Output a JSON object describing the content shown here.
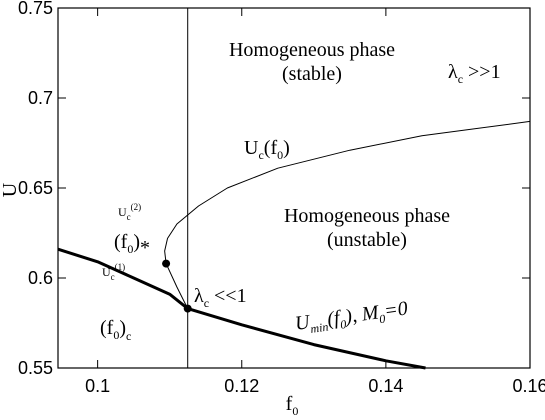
{
  "chart_data": {
    "type": "line",
    "xlabel": [
      "f",
      "0"
    ],
    "ylabel": "U",
    "xlim": [
      0.0945,
      0.16
    ],
    "ylim": [
      0.55,
      0.75
    ],
    "xticks": [
      0.1,
      0.12,
      0.14,
      0.16
    ],
    "yticks": [
      0.55,
      0.6,
      0.65,
      0.7,
      0.75
    ],
    "series": [
      {
        "color": "#000000",
        "x": [
          0.0945,
          0.1,
          0.105,
          0.11,
          0.1125,
          0.12,
          0.13,
          0.14,
          0.1455
        ],
        "values": [
          0.616,
          0.609,
          0.6,
          0.591,
          0.583,
          0.574,
          0.563,
          0.554,
          0.55
        ]
      },
      {
        "color": "#000000",
        "x": [
          0.1125,
          0.111,
          0.1095,
          0.1093,
          0.1097,
          0.111,
          0.114,
          0.118,
          0.125,
          0.135,
          0.145,
          0.16
        ],
        "values": [
          0.583,
          0.595,
          0.608,
          0.615,
          0.622,
          0.63,
          0.64,
          0.65,
          0.661,
          0.671,
          0.679,
          0.687
        ]
      }
    ],
    "vline": 0.1125,
    "points": {
      "x": [
        0.1095,
        0.1125
      ],
      "values": [
        0.608,
        0.583
      ]
    },
    "annotations": [
      [
        "Homogeneous phase"
      ],
      [
        "(stable)"
      ],
      [
        "λ",
        "c",
        " >>1"
      ],
      [
        "U",
        "c",
        "(f",
        "0",
        ")"
      ],
      [
        "Homogeneous phase"
      ],
      [
        "(unstable)"
      ],
      [
        "U",
        "c",
        "(2)"
      ],
      [
        "(f",
        "0",
        ")",
        "*"
      ],
      [
        "U",
        "c",
        "(1)"
      ],
      [
        "λ",
        "c",
        " <<1"
      ],
      [
        "(f",
        "0",
        ")",
        "c"
      ],
      [
        "U",
        "min",
        "(f",
        "0",
        "), ",
        "M",
        "0",
        "=0"
      ]
    ]
  }
}
